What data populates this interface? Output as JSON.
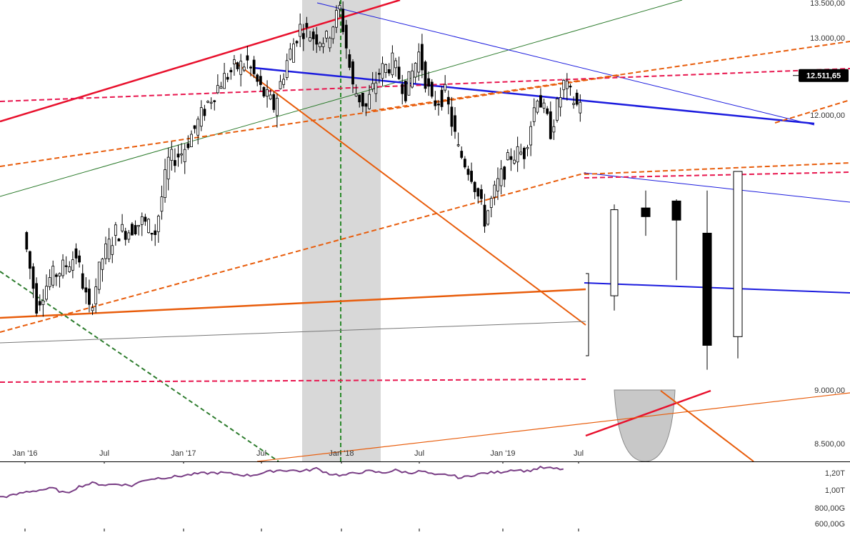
{
  "chart_data": {
    "type": "candlestick",
    "title": "",
    "last_price_label": "12.511,65",
    "price_axis": {
      "scale": "log",
      "ylim": [
        8350,
        13500
      ],
      "tick_labels": [
        "13.500,00",
        "13.000,00",
        "12.000,00",
        "9.000,00",
        "8.500,00"
      ],
      "tick_values": [
        13500,
        13000,
        12000,
        9000,
        8500
      ]
    },
    "x_axis": {
      "tick_labels": [
        "Jan '16",
        "Jul",
        "Jan '17",
        "Jul",
        "Jan '18",
        "Jul",
        "Jan '19",
        "Jul"
      ]
    },
    "volume_panel": {
      "tick_labels": [
        "1,20T",
        "1,00T",
        "800,00G",
        "600,00G"
      ],
      "tick_values": [
        1.2,
        1.0,
        0.8,
        0.6
      ],
      "series_color": "#7a3f86"
    },
    "shaded_region": {
      "start": "2017-11",
      "end": "2018-04"
    },
    "vertical_marker": {
      "date": "2018-01",
      "color": "#2e8b2e"
    },
    "colors": {
      "up_candle": "#ffffff",
      "down_candle": "#000000",
      "trend_red": "#e8112d",
      "trend_dashed_red": "#e8174f",
      "trend_orange": "#e85d0c",
      "trend_blue": "#1c1cde",
      "trend_green": "#2f7d2f",
      "trend_gray": "#777777",
      "shade": "#d6d6d6",
      "price_tag_bg": "#000000"
    },
    "zoom_candles": [
      {
        "o": 9870,
        "h": 10920,
        "l": 9700,
        "c": 10860
      },
      {
        "o": 10880,
        "h": 11080,
        "l": 10560,
        "c": 10780
      },
      {
        "o": 10960,
        "h": 10980,
        "l": 10050,
        "c": 10740
      },
      {
        "o": 10590,
        "h": 11080,
        "l": 9020,
        "c": 9300
      },
      {
        "o": 9400,
        "h": 11080,
        "l": 9150,
        "c": 11300
      }
    ],
    "series": [
      {
        "dates": [
          "2016-01",
          "2016-02",
          "2016-03",
          "2016-04",
          "2016-05",
          "2016-06",
          "2016-07",
          "2016-08",
          "2016-09",
          "2016-10",
          "2016-11",
          "2016-12",
          "2017-01",
          "2017-02",
          "2017-03",
          "2017-04",
          "2017-05",
          "2017-06",
          "2017-07",
          "2017-08",
          "2017-09",
          "2017-10",
          "2017-11",
          "2017-12",
          "2018-01",
          "2018-02",
          "2018-03",
          "2018-04",
          "2018-05",
          "2018-06",
          "2018-07",
          "2018-08",
          "2018-09",
          "2018-10",
          "2018-11",
          "2018-12",
          "2019-01",
          "2019-02",
          "2019-03",
          "2019-04",
          "2019-05",
          "2019-06",
          "2019-07",
          "2019-08"
        ],
        "values": [
          10480,
          9540,
          9880,
          10020,
          10190,
          9450,
          10150,
          10480,
          10510,
          10620,
          10480,
          11400,
          11510,
          11820,
          12160,
          12440,
          12600,
          12680,
          12330,
          12110,
          12700,
          13150,
          13020,
          12980,
          13420,
          12350,
          12100,
          12560,
          12680,
          12310,
          12800,
          12140,
          12270,
          11540,
          11240,
          10650,
          11110,
          11480,
          11520,
          12280,
          11800,
          12400,
          12120,
          12510
        ]
      }
    ],
    "volume_series": [
      0.92,
      0.94,
      0.98,
      1.0,
      1.02,
      0.96,
      1.04,
      1.08,
      1.06,
      1.07,
      1.05,
      1.12,
      1.14,
      1.15,
      1.17,
      1.19,
      1.2,
      1.2,
      1.18,
      1.17,
      1.2,
      1.23,
      1.23,
      1.22,
      1.25,
      1.19,
      1.17,
      1.2,
      1.22,
      1.2,
      1.23,
      1.2,
      1.22,
      1.17,
      1.18,
      1.14,
      1.18,
      1.2,
      1.21,
      1.24,
      1.22,
      1.26,
      1.25,
      1.24
    ]
  }
}
